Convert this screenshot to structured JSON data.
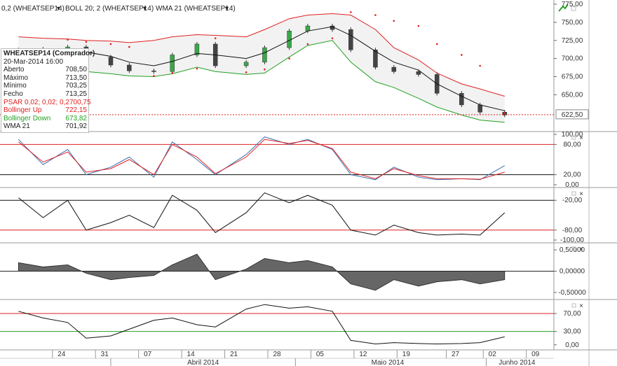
{
  "header": {
    "psar_tab": "0,2 (WHEATSEP14)",
    "boll_tab": "BOLL 20; 2 (WHEATSEP14)",
    "wma_tab": "WMA 21 (WHEATSEP14)",
    "dropdown_glyph": "▾"
  },
  "colors": {
    "bull": "#3aa84a",
    "bear": "#444444",
    "boll_up": "#e02020",
    "boll_down": "#22a022",
    "wma": "#111111",
    "psar": "#e02020",
    "stoch_k": "#3a6fb0",
    "stoch_d": "#e02020",
    "level_red": "#e02020",
    "level_black": "#111111",
    "osc_fill": "#666666",
    "bg": "#ffffff"
  },
  "infobox": {
    "title": "WHEATSEP14 (Comprador)",
    "datetime": "20-Mar-2014 16:00",
    "rows": [
      {
        "label": "Aberto",
        "value": "708,50",
        "color": "#222222"
      },
      {
        "label": "Máximo",
        "value": "713,50",
        "color": "#222222"
      },
      {
        "label": "Mínimo",
        "value": "703,25",
        "color": "#222222"
      },
      {
        "label": "Fecho",
        "value": "713,25",
        "color": "#222222"
      },
      {
        "label": "PSAR 0,02; 0,02; 0,2",
        "value": "700,75",
        "color": "#e02020"
      },
      {
        "label": "Bollinger Up",
        "value": "722,15",
        "color": "#e02020"
      },
      {
        "label": "Bollinger Down",
        "value": "673,82",
        "color": "#22a022"
      },
      {
        "label": "WMA 21",
        "value": "701,92",
        "color": "#222222"
      }
    ]
  },
  "x_axis": {
    "day_ticks": [
      "24",
      "31",
      "07",
      "14",
      "21",
      "28",
      "05",
      "12",
      "19",
      "27",
      "02",
      "09"
    ],
    "months": [
      "Abril 2014",
      "Maio 2014",
      "Junho 2014"
    ]
  },
  "chart_data": [
    {
      "type": "candlestick",
      "panel": "price",
      "ylim": [
        605,
        775
      ],
      "y_ticks": [
        "775,00",
        "750,00",
        "725,00",
        "700,00",
        "675,00",
        "650,00"
      ],
      "last_price_label": "622,50",
      "last_price": 622.5,
      "x": [
        "2014-03-17",
        "2014-03-21",
        "2014-03-25",
        "2014-03-28",
        "2014-04-01",
        "2014-04-04",
        "2014-04-08",
        "2014-04-11",
        "2014-04-15",
        "2014-04-18",
        "2014-04-23",
        "2014-04-26",
        "2014-04-30",
        "2014-05-03",
        "2014-05-07",
        "2014-05-10",
        "2014-05-14",
        "2014-05-17",
        "2014-05-21",
        "2014-05-24",
        "2014-05-28",
        "2014-05-31",
        "2014-06-04"
      ],
      "series": [
        {
          "name": "Close",
          "values": [
            712,
            713,
            716,
            702,
            691,
            683,
            682,
            705,
            720,
            690,
            695,
            715,
            738,
            745,
            740,
            712,
            688,
            682,
            678,
            652,
            636,
            626,
            622
          ]
        },
        {
          "name": "Bollinger Up",
          "values": [
            730,
            728,
            727,
            725,
            724,
            722,
            725,
            730,
            733,
            732,
            730,
            740,
            755,
            760,
            762,
            760,
            740,
            715,
            698,
            680,
            665,
            658,
            648
          ]
        },
        {
          "name": "Bollinger Down",
          "values": [
            690,
            688,
            686,
            682,
            679,
            676,
            675,
            679,
            688,
            682,
            678,
            680,
            702,
            718,
            725,
            695,
            668,
            660,
            645,
            633,
            622,
            615,
            612
          ]
        },
        {
          "name": "WMA 21",
          "values": [
            708,
            709,
            711,
            709,
            703,
            695,
            690,
            696,
            707,
            705,
            700,
            708,
            725,
            738,
            744,
            732,
            710,
            695,
            684,
            665,
            648,
            636,
            628
          ]
        },
        {
          "name": "PSAR",
          "values": [
            701,
            703,
            726,
            723,
            720,
            716,
            676,
            680,
            686,
            728,
            681,
            685,
            700,
            720,
            728,
            764,
            760,
            752,
            745,
            720,
            705,
            690,
            625
          ]
        }
      ]
    },
    {
      "type": "line",
      "panel": "stochastic",
      "ylim": [
        0,
        100
      ],
      "y_ticks": [
        "100,00",
        "80,00",
        "20,00",
        "0,00"
      ],
      "levels": [
        80,
        20
      ],
      "x": [
        "2014-03-17",
        "2014-03-21",
        "2014-03-25",
        "2014-03-28",
        "2014-04-01",
        "2014-04-04",
        "2014-04-08",
        "2014-04-11",
        "2014-04-15",
        "2014-04-18",
        "2014-04-23",
        "2014-04-26",
        "2014-04-30",
        "2014-05-03",
        "2014-05-07",
        "2014-05-10",
        "2014-05-14",
        "2014-05-17",
        "2014-05-21",
        "2014-05-24",
        "2014-05-28",
        "2014-05-31",
        "2014-06-04"
      ],
      "series": [
        {
          "values": [
            90,
            40,
            70,
            20,
            35,
            55,
            15,
            85,
            50,
            20,
            60,
            95,
            80,
            90,
            70,
            20,
            10,
            35,
            15,
            10,
            12,
            10,
            38
          ]
        },
        {
          "values": [
            85,
            45,
            65,
            25,
            32,
            50,
            20,
            80,
            55,
            22,
            55,
            90,
            82,
            88,
            72,
            25,
            12,
            32,
            18,
            12,
            12,
            11,
            25
          ]
        }
      ]
    },
    {
      "type": "line",
      "panel": "williams_r",
      "ylim": [
        -100,
        0
      ],
      "y_ticks": [
        "-20,00",
        "-80,00",
        "-100,00"
      ],
      "levels": [
        -20,
        -80
      ],
      "x": [
        "2014-03-17",
        "2014-03-21",
        "2014-03-25",
        "2014-03-28",
        "2014-04-01",
        "2014-04-04",
        "2014-04-08",
        "2014-04-11",
        "2014-04-15",
        "2014-04-18",
        "2014-04-23",
        "2014-04-26",
        "2014-04-30",
        "2014-05-03",
        "2014-05-07",
        "2014-05-10",
        "2014-05-14",
        "2014-05-17",
        "2014-05-21",
        "2014-05-24",
        "2014-05-28",
        "2014-05-31",
        "2014-06-04"
      ],
      "series": [
        {
          "values": [
            -15,
            -55,
            -20,
            -80,
            -65,
            -50,
            -75,
            -10,
            -40,
            -85,
            -45,
            -5,
            -25,
            -10,
            -30,
            -80,
            -90,
            -70,
            -85,
            -90,
            -88,
            -90,
            -45
          ]
        }
      ]
    },
    {
      "type": "area",
      "panel": "oscillator",
      "ylim": [
        -0.6,
        0.6
      ],
      "y_ticks": [
        "0,50000",
        "0,00000",
        "-0,50000"
      ],
      "x": [
        "2014-03-17",
        "2014-03-21",
        "2014-03-25",
        "2014-03-28",
        "2014-04-01",
        "2014-04-04",
        "2014-04-08",
        "2014-04-11",
        "2014-04-15",
        "2014-04-18",
        "2014-04-23",
        "2014-04-26",
        "2014-04-30",
        "2014-05-03",
        "2014-05-07",
        "2014-05-10",
        "2014-05-14",
        "2014-05-17",
        "2014-05-21",
        "2014-05-24",
        "2014-05-28",
        "2014-05-31",
        "2014-06-04"
      ],
      "series": [
        {
          "values": [
            0.2,
            0.1,
            0.15,
            -0.05,
            -0.2,
            -0.15,
            -0.1,
            0.15,
            0.4,
            -0.2,
            0.05,
            0.3,
            0.2,
            0.25,
            0.1,
            -0.3,
            -0.45,
            -0.2,
            -0.35,
            -0.25,
            -0.2,
            -0.3,
            -0.2
          ]
        }
      ]
    },
    {
      "type": "line",
      "panel": "rsi",
      "ylim": [
        -5,
        95
      ],
      "y_ticks": [
        "70,00",
        "30,00",
        "0,00"
      ],
      "levels": [
        70,
        30
      ],
      "x": [
        "2014-03-17",
        "2014-03-21",
        "2014-03-25",
        "2014-03-28",
        "2014-04-01",
        "2014-04-04",
        "2014-04-08",
        "2014-04-11",
        "2014-04-15",
        "2014-04-18",
        "2014-04-23",
        "2014-04-26",
        "2014-04-30",
        "2014-05-03",
        "2014-05-07",
        "2014-05-10",
        "2014-05-14",
        "2014-05-17",
        "2014-05-21",
        "2014-05-24",
        "2014-05-28",
        "2014-05-31",
        "2014-06-04"
      ],
      "series": [
        {
          "values": [
            75,
            60,
            50,
            15,
            20,
            35,
            55,
            60,
            45,
            40,
            80,
            90,
            82,
            85,
            75,
            10,
            2,
            5,
            3,
            2,
            3,
            5,
            18
          ]
        }
      ]
    }
  ]
}
